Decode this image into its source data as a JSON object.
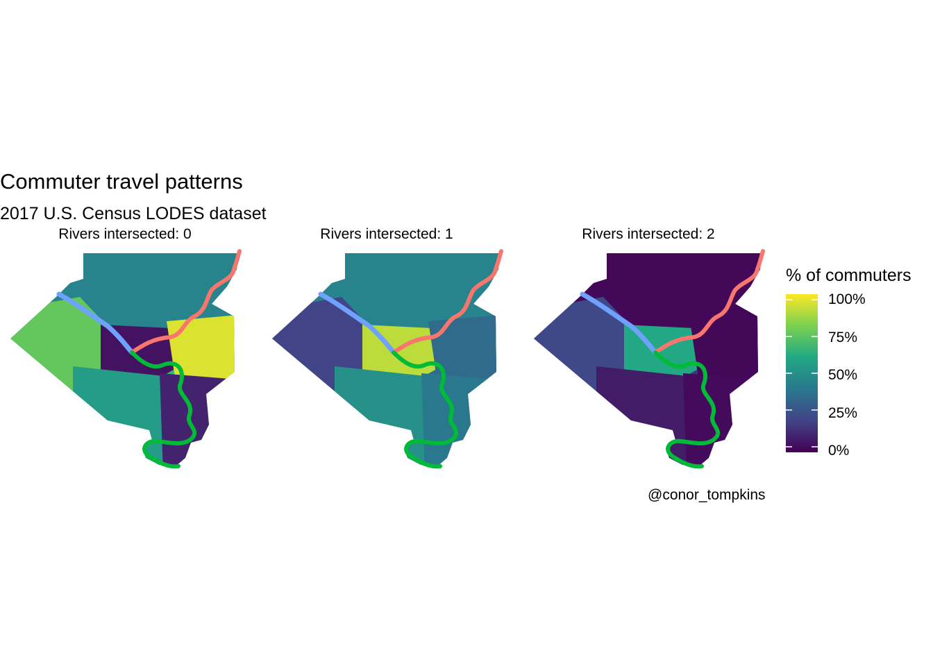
{
  "plot": {
    "title": "Commuter travel patterns",
    "subtitle": "2017 U.S. Census LODES dataset",
    "caption": "@conor_tompkins"
  },
  "legend": {
    "title": "% of commuters",
    "labels": [
      "100%",
      "75%",
      "50%",
      "25%",
      "0%"
    ],
    "scale": "viridis",
    "colors": [
      "#fde725",
      "#7ad151",
      "#22a884",
      "#2a788e",
      "#414487",
      "#440154"
    ]
  },
  "rivers": {
    "ohio_color": "#6fa2ff",
    "allegheny_color": "#f8766d",
    "monongahela_color": "#00ba38"
  },
  "facets": [
    {
      "label": "Rivers intersected: 0",
      "fill": {
        "west": 0.75,
        "north": 0.45,
        "center": 0.05,
        "east": 0.95,
        "south": 0.55,
        "southeast": 0.1
      }
    },
    {
      "label": "Rivers intersected: 1",
      "fill": {
        "west": 0.2,
        "north": 0.45,
        "center": 0.9,
        "east": 0.35,
        "south": 0.5,
        "southeast": 0.4
      }
    },
    {
      "label": "Rivers intersected: 2",
      "fill": {
        "west": 0.22,
        "north": 0.02,
        "center": 0.6,
        "east": 0.02,
        "south": 0.08,
        "southeast": 0.03
      }
    }
  ]
}
